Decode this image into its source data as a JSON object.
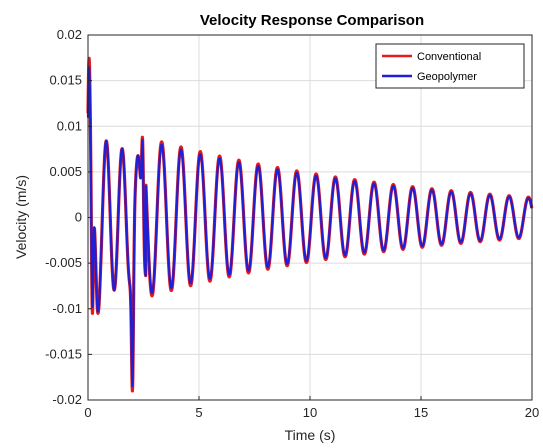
{
  "chart_data": {
    "type": "line",
    "title": "Velocity Response Comparison",
    "xlabel": "Time (s)",
    "ylabel": "Velocity (m/s)",
    "xlim": [
      0,
      20
    ],
    "ylim": [
      -0.02,
      0.02
    ],
    "xticks": [
      0,
      5,
      10,
      15,
      20
    ],
    "xtick_labels": [
      "0",
      "5",
      "10",
      "15",
      "20"
    ],
    "yticks": [
      -0.02,
      -0.015,
      -0.01,
      -0.005,
      0,
      0.005,
      0.01,
      0.015,
      0.02
    ],
    "ytick_labels": [
      "-0.02",
      "-0.015",
      "-0.01",
      "-0.005",
      "0",
      "0.005",
      "0.01",
      "0.015",
      "0.02"
    ],
    "grid": true,
    "legend_position": "top-right",
    "series": [
      {
        "name": "Conventional",
        "color": "#e41a1c",
        "approx_model": {
          "initial_peaks": [
            [
              0.05,
              0.0175
            ],
            [
              0.2,
              -0.0105
            ],
            [
              0.45,
              -0.0105
            ],
            [
              2.0,
              -0.019
            ],
            [
              2.45,
              0.0088
            ]
          ],
          "steady_frequency_hz": 1.15,
          "amplitude_at_t3": 0.0085,
          "amplitude_at_t20": 0.0022
        }
      },
      {
        "name": "Geopolymer",
        "color": "#1f1fd6",
        "approx_model": {
          "initial_peaks": [
            [
              0.05,
              0.0165
            ],
            [
              0.2,
              -0.0098
            ],
            [
              0.45,
              -0.0103
            ],
            [
              2.0,
              -0.0185
            ],
            [
              2.45,
              0.0085
            ]
          ],
          "steady_frequency_hz": 1.15,
          "amplitude_at_t3": 0.0082,
          "amplitude_at_t20": 0.0021
        }
      }
    ]
  }
}
